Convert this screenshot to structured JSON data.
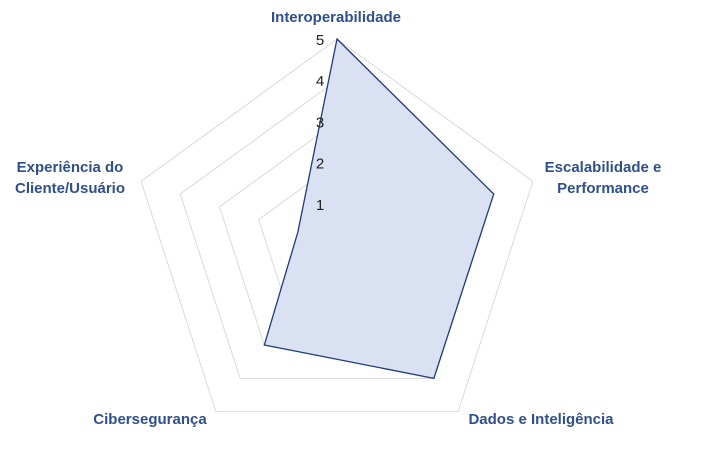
{
  "chart_data": {
    "type": "radar",
    "axes": [
      [
        "Interoperabilidade"
      ],
      [
        "Escalabilidade e",
        "Performance"
      ],
      [
        "Dados e Inteligência"
      ],
      [
        "Cibersegurança"
      ],
      [
        "Experiência do",
        "Cliente/Usuário"
      ]
    ],
    "series": [
      {
        "values": [
          5,
          4,
          4,
          3,
          1
        ]
      }
    ],
    "range": [
      0,
      5
    ],
    "ticks": [
      "1",
      "2",
      "3",
      "4",
      "5"
    ],
    "grid": true,
    "colors": {
      "fill": "#dae1f3",
      "stroke": "#1f3a7a",
      "grid": "#d9d9d9",
      "label": "#2f4f8f"
    }
  }
}
